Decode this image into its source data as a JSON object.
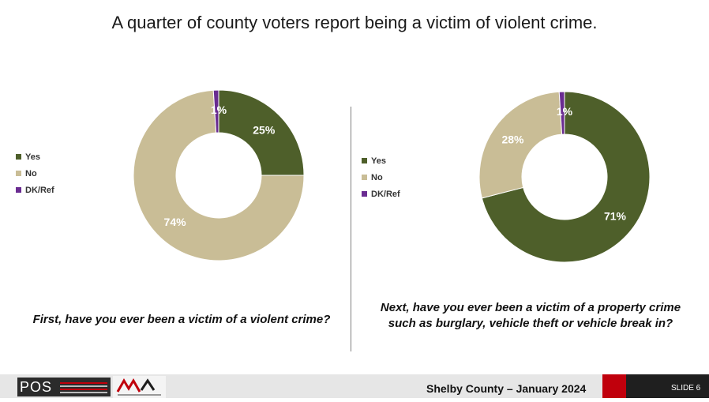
{
  "title": "A quarter of county voters report being a victim of violent crime.",
  "colors": {
    "yes": "#4e5f2a",
    "no": "#c9bd96",
    "dk": "#6a2c91"
  },
  "chart_data": [
    {
      "type": "pie",
      "donut": true,
      "categories": [
        "Yes",
        "No",
        "DK/Ref"
      ],
      "values": [
        25,
        74,
        1
      ],
      "data_labels": [
        "25%",
        "74%",
        "1%"
      ],
      "legend": "left",
      "question": "First, have you ever been a victim of a violent crime?"
    },
    {
      "type": "pie",
      "donut": true,
      "categories": [
        "Yes",
        "No",
        "DK/Ref"
      ],
      "values": [
        71,
        28,
        1
      ],
      "data_labels": [
        "71%",
        "28%",
        "1%"
      ],
      "legend": "left",
      "question": "Next, have you ever been a victim of a property crime such as burglary, vehicle theft or vehicle break in?"
    }
  ],
  "footer": {
    "logo_text": "POS",
    "center_text": "Shelby County – January 2024",
    "slide_label": "SLIDE 6"
  }
}
